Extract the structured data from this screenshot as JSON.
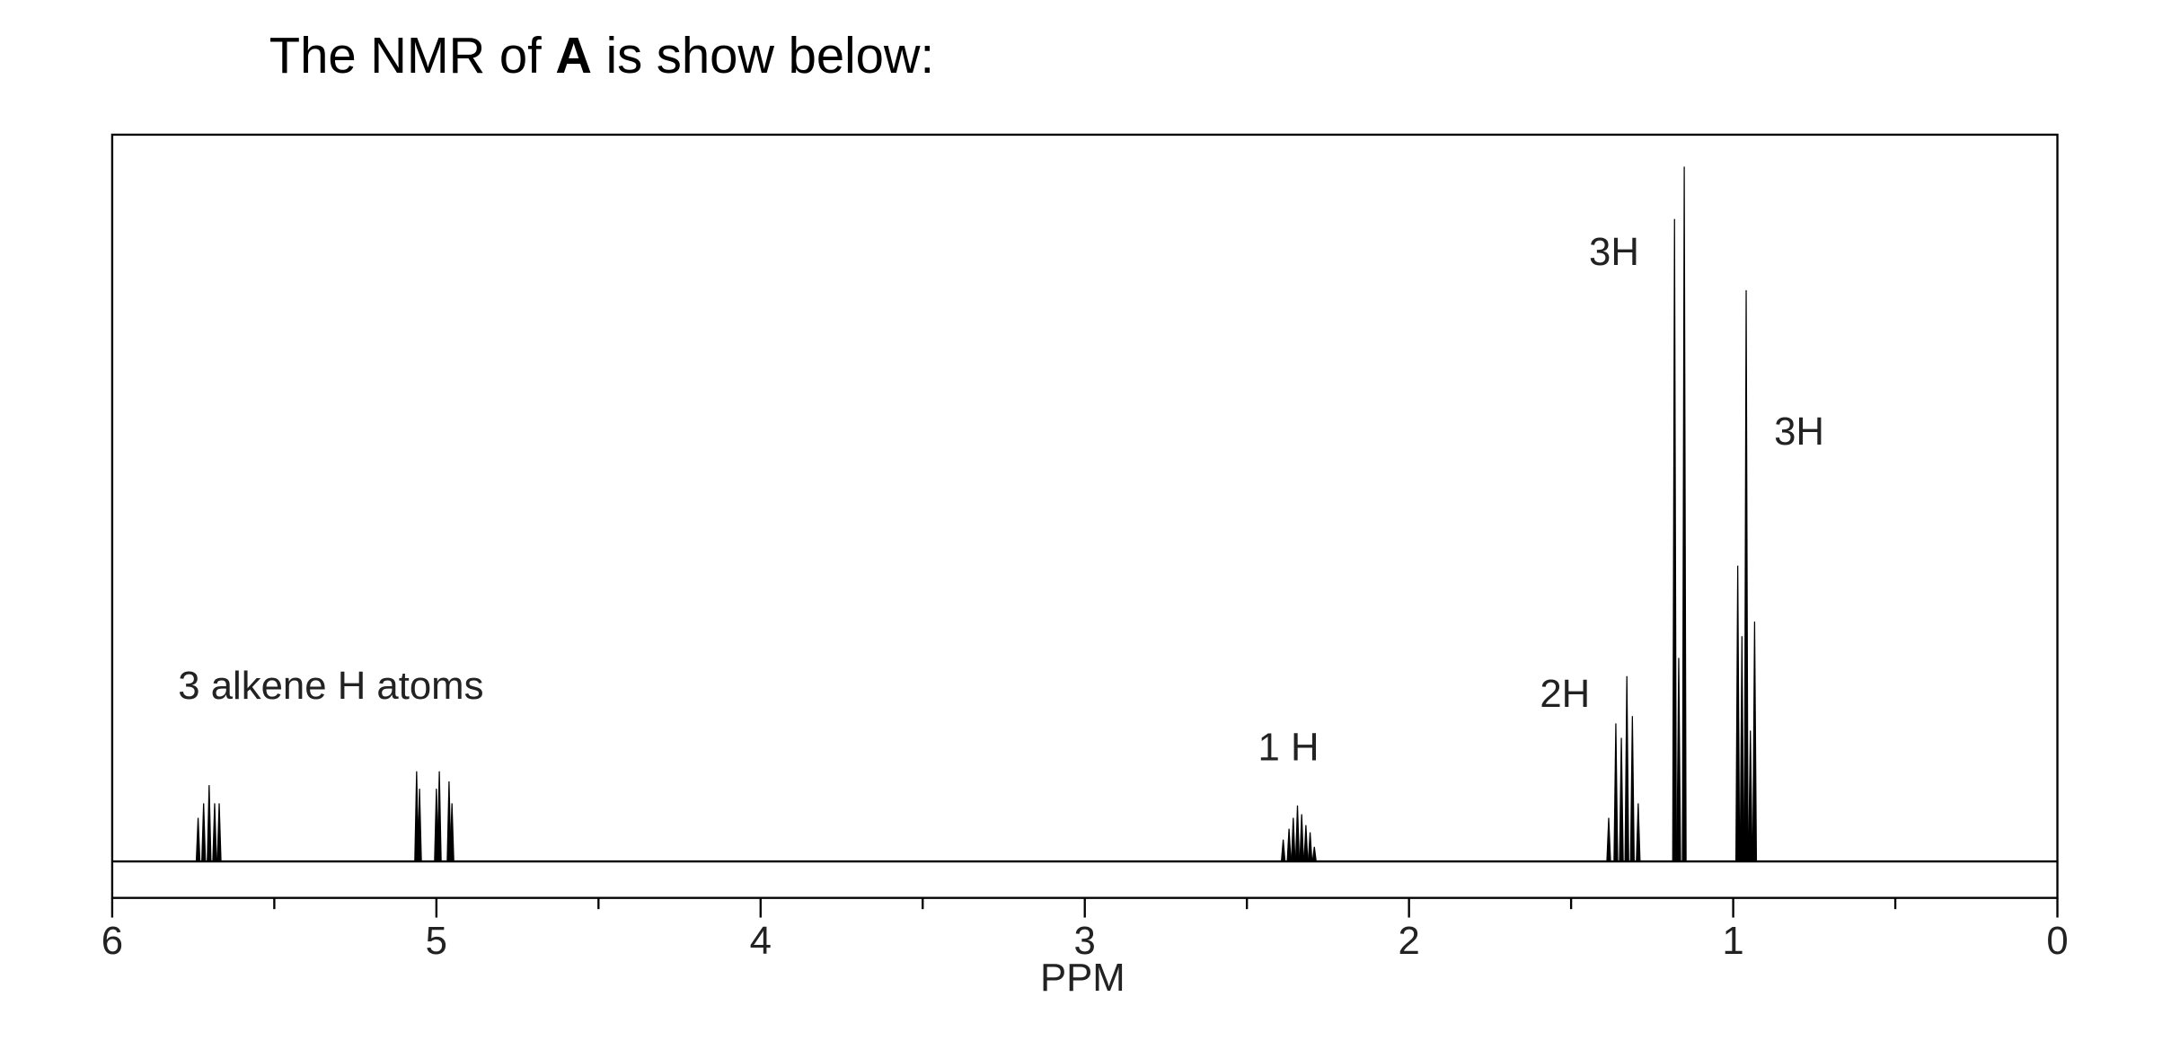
{
  "chart_data": {
    "type": "stick",
    "title_before": "The NMR of ",
    "title_bold": "A",
    "title_after": " is show below:",
    "x_label": "PPM",
    "annotations": [
      "3 alkene H atoms",
      "1 H",
      "2H",
      "3H",
      "3H"
    ],
    "xlim": [
      6,
      0
    ],
    "xticks": [
      6,
      5,
      4,
      3,
      2,
      1,
      0
    ],
    "xminorticks": [
      5.5,
      4.5,
      3.5,
      2.5,
      1.5,
      0.5
    ],
    "ylim": [
      0,
      100
    ],
    "color": "#000000",
    "x": [
      5.735,
      5.718,
      5.701,
      5.684,
      5.67,
      5.061,
      5.052,
      5.0,
      4.991,
      4.961,
      4.952,
      2.388,
      2.37,
      2.357,
      2.344,
      2.331,
      2.318,
      2.305,
      2.292,
      1.384,
      1.362,
      1.345,
      1.328,
      1.311,
      1.293,
      1.181,
      1.168,
      1.151,
      0.986,
      0.973,
      0.96,
      0.947,
      0.934
    ],
    "values": [
      6,
      8,
      10.5,
      8,
      8,
      12.4,
      10,
      10,
      12.4,
      11,
      8,
      3,
      4.5,
      6,
      7.7,
      6.5,
      5,
      4,
      2,
      6,
      19,
      17,
      25.5,
      20,
      8,
      88.4,
      28,
      95.6,
      40.7,
      31,
      78.6,
      18,
      33
    ]
  }
}
